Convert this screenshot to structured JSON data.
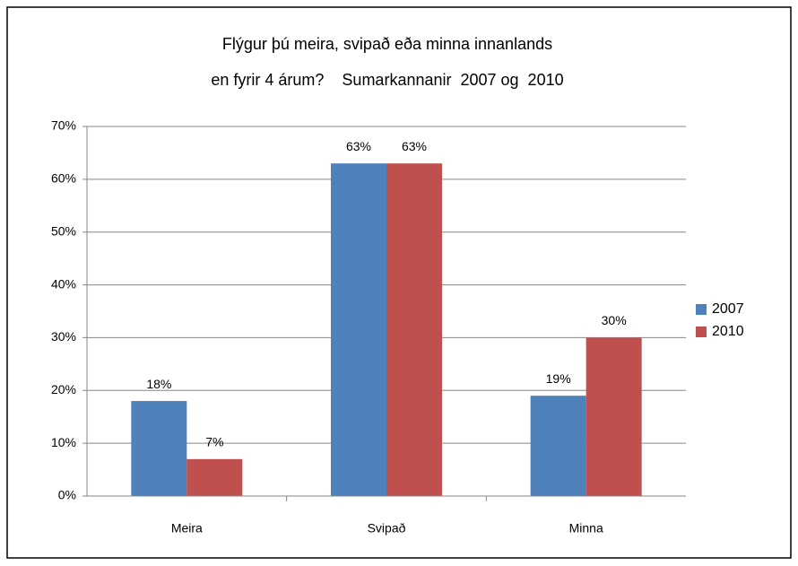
{
  "chart_data": {
    "type": "bar",
    "title": [
      "Flýgur þú meira, svipað eða minna innanlands",
      "en fyrir 4 árum?    Sumarkannanir  2007 og  2010"
    ],
    "categories": [
      "Meira",
      "Svipað",
      "Minna"
    ],
    "series": [
      {
        "name": "2007",
        "color": "#4f81bd",
        "values": [
          18,
          63,
          19
        ],
        "value_labels": [
          "18%",
          "63%",
          "19%"
        ]
      },
      {
        "name": "2010",
        "color": "#c0504d",
        "values": [
          7,
          63,
          30
        ],
        "value_labels": [
          "7%",
          "63%",
          "30%"
        ]
      }
    ],
    "ylim": [
      0,
      70
    ],
    "yticks": [
      {
        "value": 0,
        "label": "0%"
      },
      {
        "value": 10,
        "label": "10%"
      },
      {
        "value": 20,
        "label": "20%"
      },
      {
        "value": 30,
        "label": "30%"
      },
      {
        "value": 40,
        "label": "40%"
      },
      {
        "value": 50,
        "label": "50%"
      },
      {
        "value": 60,
        "label": "60%"
      },
      {
        "value": 70,
        "label": "70%"
      }
    ],
    "grid": true,
    "legend": "right"
  }
}
